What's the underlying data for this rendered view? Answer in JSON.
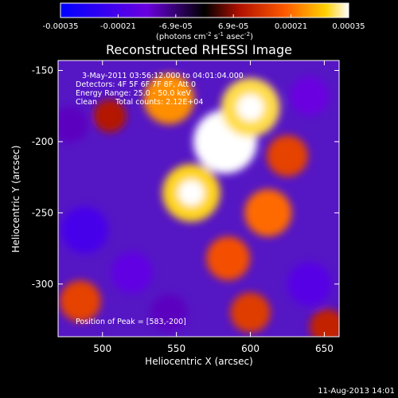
{
  "chart_data": {
    "type": "heatmap",
    "title": "Reconstructed RHESSI Image",
    "xlabel": "Heliocentric X (arcsec)",
    "ylabel": "Heliocentric Y (arcsec)",
    "xlim": [
      470,
      660
    ],
    "ylim": [
      -337,
      -143
    ],
    "xticks": [
      500,
      550,
      600,
      650
    ],
    "yticks": [
      -150,
      -200,
      -250,
      -300
    ],
    "colorbar": {
      "ticks": [
        "-0.00035",
        "-0.00021",
        "-6.9e-05",
        "6.9e-05",
        "0.00021",
        "0.00035"
      ],
      "range": [
        -0.00035,
        0.00035
      ],
      "unit_main": "(photons cm",
      "unit_sup1": "-2",
      "unit_mid": " s",
      "unit_sup2": "-1",
      "unit_end": " asec",
      "unit_sup3": "-2",
      "unit_close": ")"
    },
    "annotations": {
      "time_range": "3-May-2011 03:56:12.000 to 04:01:04.000",
      "detectors": "Detectors: 4F 5F 6F 7F 8F, Att 0",
      "energy": "Energy Range: 25.0 - 50.0 keV",
      "clean": "Clean",
      "total_counts": "Total counts: 2.12E+04",
      "peak": "Position of Peak = [583,-200]"
    },
    "date_stamp": "11-Aug-2013 14:01",
    "sources": [
      {
        "x": 583,
        "y": -200,
        "value": 0.00035
      },
      {
        "x": 600,
        "y": -176,
        "value": 0.00031
      },
      {
        "x": 560,
        "y": -236,
        "value": 0.0003
      },
      {
        "x": 545,
        "y": -170,
        "value": 0.00024
      },
      {
        "x": 612,
        "y": -250,
        "value": 0.00021
      },
      {
        "x": 625,
        "y": -210,
        "value": 0.00016
      },
      {
        "x": 585,
        "y": -282,
        "value": 0.00018
      },
      {
        "x": 600,
        "y": -320,
        "value": 0.00015
      },
      {
        "x": 485,
        "y": -312,
        "value": 0.00016
      },
      {
        "x": 505,
        "y": -182,
        "value": 9e-05
      },
      {
        "x": 488,
        "y": -262,
        "value": -0.00021
      },
      {
        "x": 520,
        "y": -292,
        "value": -0.00016
      },
      {
        "x": 640,
        "y": -300,
        "value": -0.00018
      },
      {
        "x": 640,
        "y": -168,
        "value": -0.00014
      },
      {
        "x": 545,
        "y": -320,
        "value": -0.00012
      },
      {
        "x": 478,
        "y": -188,
        "value": -0.00012
      },
      {
        "x": 652,
        "y": -330,
        "value": 0.00011
      }
    ]
  }
}
